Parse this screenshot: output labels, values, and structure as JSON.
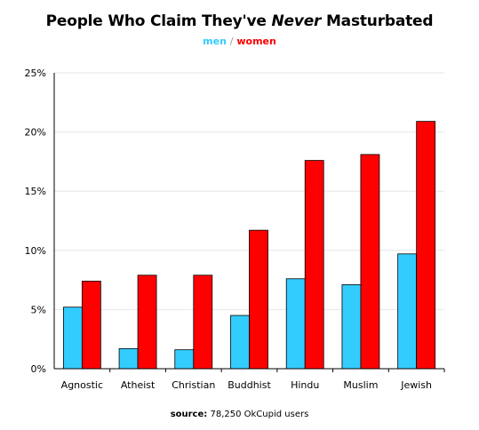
{
  "chart_data": {
    "type": "bar",
    "title_parts": {
      "before": "People Who Claim They've ",
      "emphasis": "Never",
      "after": " Masturbated"
    },
    "legend": {
      "men": "men",
      "separator": "/",
      "women": "women"
    },
    "categories": [
      "Agnostic",
      "Atheist",
      "Christian",
      "Buddhist",
      "Hindu",
      "Muslim",
      "Jewish"
    ],
    "series": [
      {
        "name": "men",
        "color": "#33ccff",
        "values": [
          5.2,
          1.7,
          1.6,
          4.5,
          7.6,
          7.1,
          9.7
        ]
      },
      {
        "name": "women",
        "color": "#ff0000",
        "values": [
          7.4,
          7.9,
          7.9,
          11.7,
          17.6,
          18.1,
          20.9
        ]
      }
    ],
    "ylim": [
      0,
      25
    ],
    "yticks": [
      "0%",
      "5%",
      "10%",
      "15%",
      "20%",
      "25%"
    ],
    "grid": true,
    "source": {
      "label": "source:",
      "text": "78,250 OkCupid users"
    }
  }
}
